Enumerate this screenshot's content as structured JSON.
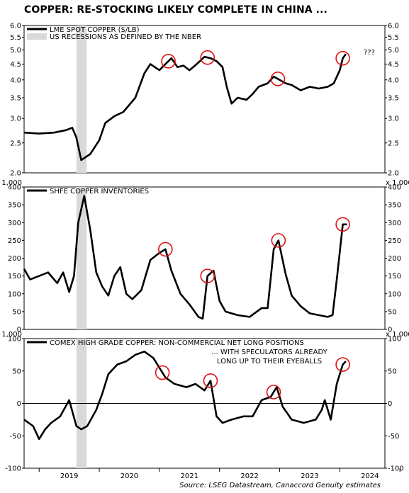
{
  "title": "COPPER: RE-STOCKING LIKELY COMPLETE IN CHINA ...",
  "source": "Source: LSEG Datastream, Canaccord Genuity estimates",
  "colors": {
    "line": "#000000",
    "circle": "#e01010",
    "recession": "#d9d9d9"
  },
  "x_axis": {
    "labels": [
      "2019",
      "2020",
      "2021",
      "2022",
      "2023",
      "2024"
    ]
  },
  "recession_label": "US RECESSIONS AS DEFINED BY THE NBER",
  "chart_data": [
    {
      "type": "line",
      "legend": "LME SPOT COPPER ($/LB)",
      "scale": "log",
      "ylim": [
        2.0,
        6.0
      ],
      "ticks": [
        "2.0",
        "2.5",
        "3.0",
        "3.5",
        "4.0",
        "4.5",
        "5.0",
        "5.5",
        "6.0"
      ],
      "tick_values": [
        2.0,
        2.5,
        3.0,
        3.5,
        4.0,
        4.5,
        5.0,
        5.5,
        6.0
      ],
      "annotation": "???",
      "highlight_dates": [
        "2021.15",
        "2021.80",
        "2022.97",
        "2024.05"
      ],
      "x": [
        2018.75,
        2019.0,
        2019.25,
        2019.45,
        2019.55,
        2019.62,
        2019.7,
        2019.85,
        2020.0,
        2020.1,
        2020.25,
        2020.4,
        2020.6,
        2020.75,
        2020.85,
        2021.0,
        2021.1,
        2021.2,
        2021.3,
        2021.4,
        2021.5,
        2021.62,
        2021.75,
        2021.85,
        2021.95,
        2022.05,
        2022.12,
        2022.2,
        2022.3,
        2022.45,
        2022.55,
        2022.65,
        2022.8,
        2022.9,
        2023.0,
        2023.1,
        2023.2,
        2023.35,
        2023.5,
        2023.65,
        2023.8,
        2023.9,
        2024.0,
        2024.05,
        2024.1
      ],
      "y": [
        2.7,
        2.68,
        2.7,
        2.75,
        2.8,
        2.6,
        2.2,
        2.3,
        2.55,
        2.9,
        3.05,
        3.15,
        3.5,
        4.2,
        4.5,
        4.3,
        4.5,
        4.7,
        4.4,
        4.45,
        4.3,
        4.5,
        4.75,
        4.7,
        4.6,
        4.4,
        3.8,
        3.35,
        3.5,
        3.45,
        3.6,
        3.8,
        3.9,
        4.1,
        4.0,
        3.9,
        3.85,
        3.7,
        3.8,
        3.75,
        3.8,
        3.9,
        4.3,
        4.7,
        4.85
      ]
    },
    {
      "type": "line",
      "legend": "SHFE COPPER INVENTORIES",
      "unit_label": "x 1,000",
      "ylim": [
        0,
        400
      ],
      "ticks": [
        "0",
        "50",
        "100",
        "150",
        "200",
        "250",
        "300",
        "350",
        "400"
      ],
      "tick_values": [
        0,
        50,
        100,
        150,
        200,
        250,
        300,
        350,
        400
      ],
      "highlight_dates": [
        "2021.10",
        "2021.80",
        "2022.98",
        "2024.05"
      ],
      "x": [
        2018.75,
        2018.85,
        2019.0,
        2019.15,
        2019.3,
        2019.4,
        2019.5,
        2019.58,
        2019.65,
        2019.75,
        2019.85,
        2019.95,
        2020.05,
        2020.15,
        2020.25,
        2020.35,
        2020.45,
        2020.55,
        2020.7,
        2020.85,
        2021.0,
        2021.1,
        2021.2,
        2021.35,
        2021.5,
        2021.65,
        2021.72,
        2021.8,
        2021.9,
        2022.0,
        2022.1,
        2022.3,
        2022.5,
        2022.7,
        2022.8,
        2022.9,
        2022.98,
        2023.1,
        2023.2,
        2023.35,
        2023.5,
        2023.65,
        2023.8,
        2023.88,
        2023.95,
        2024.05,
        2024.12
      ],
      "y": [
        170,
        140,
        150,
        160,
        130,
        160,
        105,
        150,
        300,
        375,
        280,
        160,
        120,
        95,
        150,
        175,
        100,
        85,
        110,
        195,
        215,
        225,
        165,
        100,
        70,
        35,
        30,
        150,
        165,
        80,
        50,
        40,
        35,
        60,
        60,
        225,
        250,
        155,
        95,
        65,
        45,
        40,
        35,
        40,
        140,
        295,
        295
      ]
    },
    {
      "type": "line",
      "legend": "COMEX HIGH GRADE COPPER: NON-COMMERCIAL NET LONG POSITIONS",
      "unit_label": "x 1,000",
      "ylim": [
        -100,
        100
      ],
      "ticks": [
        "-100",
        "-50",
        "0",
        "50",
        "100"
      ],
      "tick_values": [
        -100,
        -50,
        0,
        50,
        100
      ],
      "annotation": "... WITH SPECULATORS ALREADY\nLONG UP TO THEIR EYEBALLS",
      "highlight_dates": [
        "2021.05",
        "2021.85",
        "2022.90",
        "2024.05"
      ],
      "x": [
        2018.75,
        2018.9,
        2019.0,
        2019.1,
        2019.2,
        2019.35,
        2019.5,
        2019.62,
        2019.7,
        2019.8,
        2019.95,
        2020.05,
        2020.15,
        2020.3,
        2020.45,
        2020.6,
        2020.75,
        2020.9,
        2021.0,
        2021.1,
        2021.25,
        2021.45,
        2021.6,
        2021.75,
        2021.85,
        2021.95,
        2022.05,
        2022.2,
        2022.4,
        2022.55,
        2022.7,
        2022.85,
        2022.95,
        2023.05,
        2023.2,
        2023.4,
        2023.6,
        2023.7,
        2023.75,
        2023.85,
        2023.95,
        2024.05,
        2024.1
      ],
      "y": [
        -25,
        -35,
        -55,
        -40,
        -30,
        -20,
        5,
        -35,
        -40,
        -35,
        -10,
        15,
        45,
        60,
        65,
        75,
        80,
        70,
        55,
        40,
        30,
        25,
        30,
        20,
        35,
        -20,
        -30,
        -25,
        -20,
        -20,
        5,
        10,
        25,
        -5,
        -25,
        -30,
        -25,
        -10,
        5,
        -25,
        30,
        60,
        65
      ]
    }
  ]
}
